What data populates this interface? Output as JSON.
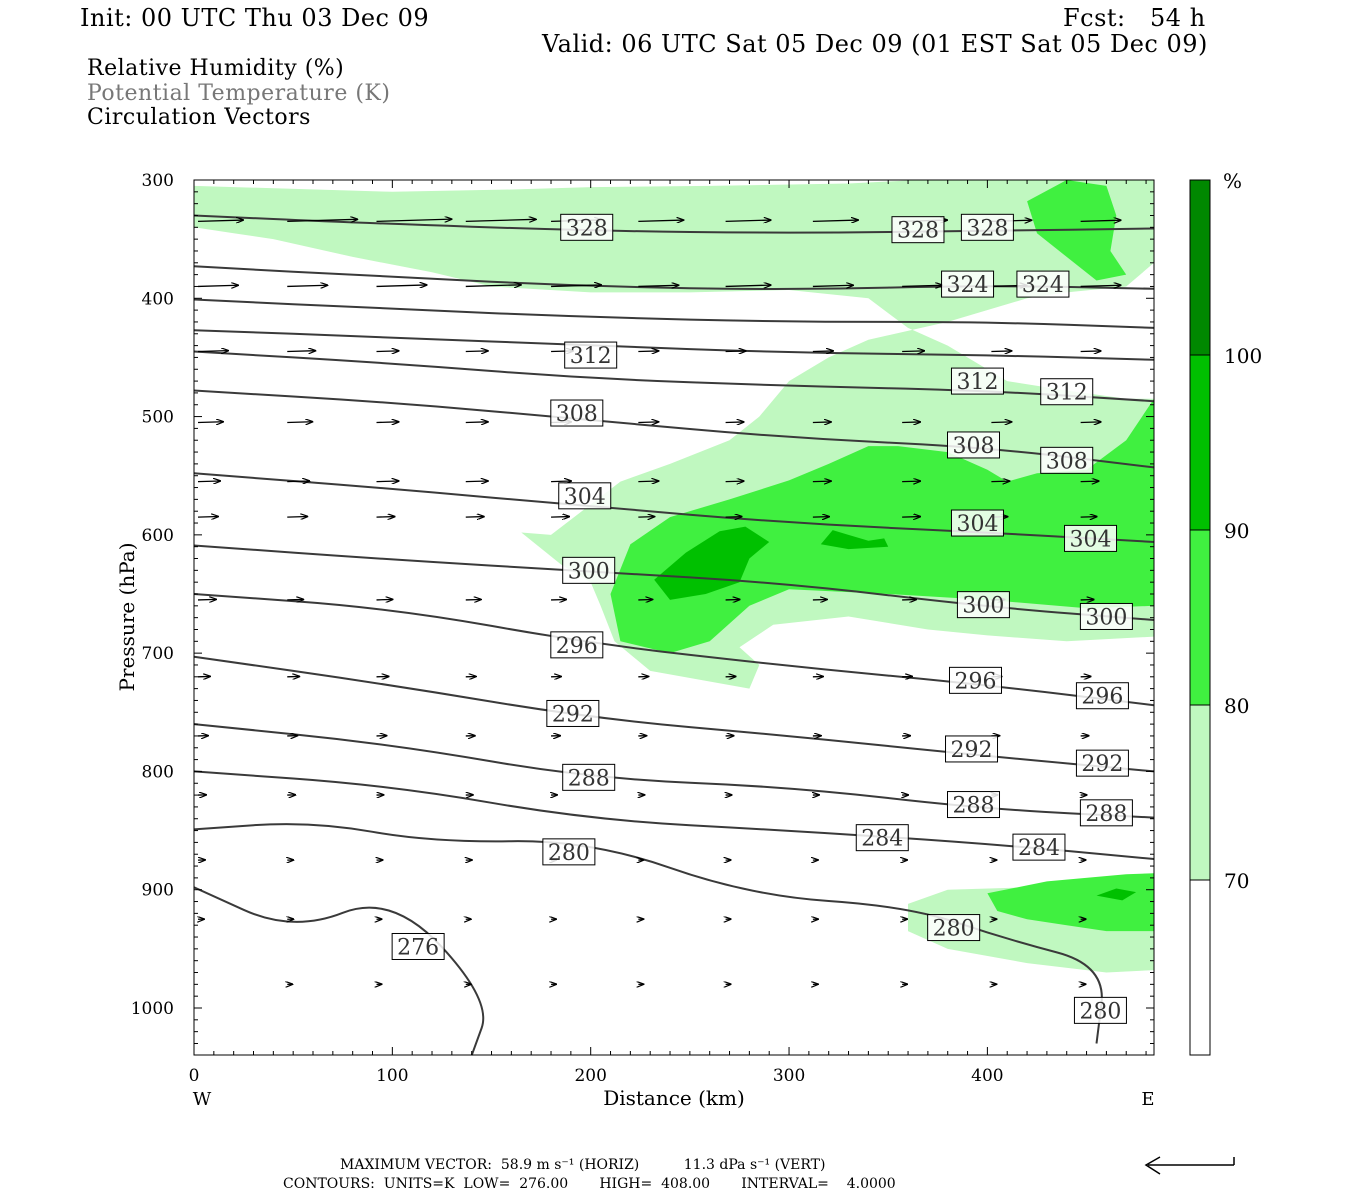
{
  "header": {
    "init": "Init: 00 UTC Thu 03 Dec 09",
    "fcst": "Fcst:   54 h",
    "valid": "Valid: 06 UTC Sat 05 Dec 09 (01 EST Sat 05 Dec 09)",
    "fields": [
      "Relative Humidity (%)",
      "Potential Temperature (K)",
      "Circulation Vectors"
    ]
  },
  "footer": {
    "max_vector": "MAXIMUM VECTOR:  58.9 m s⁻¹ (HORIZ)          11.3 dPa s⁻¹ (VERT)",
    "contours": "CONTOURS:  UNITS=K  LOW=  276.00       HIGH=  408.00       INTERVAL=    4.0000"
  },
  "colors": {
    "rh_70": "#c0f8c0",
    "rh_80": "#40f040",
    "rh_90": "#00c000",
    "rh_100": "#008800",
    "contour": "#3a3a3a",
    "legend_text_muted": "#777777"
  },
  "chart_data": {
    "type": "cross-section",
    "title": "",
    "xlabel": "Distance (km)",
    "ylabel": "Pressure (hPa)",
    "xlim": [
      0,
      484
    ],
    "ylim": [
      1040,
      300
    ],
    "x_ticks": [
      "0",
      "100",
      "200",
      "300",
      "400"
    ],
    "y_ticks": [
      "300",
      "400",
      "500",
      "600",
      "700",
      "800",
      "900",
      "1000"
    ],
    "x_left_label": "W",
    "x_right_label": "E",
    "colorbar": {
      "unit": "%",
      "ticks": [
        "70",
        "80",
        "90",
        "100"
      ],
      "levels": [
        70,
        80,
        90,
        100
      ]
    },
    "theta_contours": [
      {
        "value": 328,
        "label": "328",
        "points": [
          [
            0,
            330
          ],
          [
            80,
            336
          ],
          [
            200,
            343
          ],
          [
            300,
            345
          ],
          [
            400,
            343
          ],
          [
            484,
            341
          ]
        ],
        "labels_at": [
          [
            198,
            340
          ],
          [
            365,
            342
          ],
          [
            400,
            340
          ]
        ]
      },
      {
        "value": 324,
        "label": "324",
        "points": [
          [
            0,
            373
          ],
          [
            100,
            382
          ],
          [
            200,
            390
          ],
          [
            300,
            393
          ],
          [
            400,
            389
          ],
          [
            484,
            392
          ]
        ],
        "labels_at": [
          [
            390,
            388
          ],
          [
            428,
            388
          ]
        ]
      },
      {
        "value": 320,
        "label": "",
        "points": [
          [
            0,
            401
          ],
          [
            100,
            409
          ],
          [
            200,
            416
          ],
          [
            300,
            420
          ],
          [
            400,
            420
          ],
          [
            484,
            425
          ]
        ],
        "labels_at": []
      },
      {
        "value": 316,
        "label": "",
        "points": [
          [
            0,
            427
          ],
          [
            100,
            433
          ],
          [
            200,
            440
          ],
          [
            300,
            446
          ],
          [
            400,
            448
          ],
          [
            484,
            452
          ]
        ],
        "labels_at": []
      },
      {
        "value": 312,
        "label": "312",
        "points": [
          [
            0,
            445
          ],
          [
            100,
            455
          ],
          [
            200,
            468
          ],
          [
            300,
            474
          ],
          [
            400,
            478
          ],
          [
            484,
            487
          ]
        ],
        "labels_at": [
          [
            200,
            448
          ],
          [
            395,
            470
          ],
          [
            440,
            479
          ]
        ]
      },
      {
        "value": 308,
        "label": "308",
        "points": [
          [
            0,
            478
          ],
          [
            100,
            488
          ],
          [
            200,
            503
          ],
          [
            300,
            518
          ],
          [
            400,
            526
          ],
          [
            484,
            543
          ]
        ],
        "labels_at": [
          [
            193,
            497
          ],
          [
            393,
            524
          ],
          [
            440,
            537
          ]
        ]
      },
      {
        "value": 304,
        "label": "304",
        "points": [
          [
            0,
            548
          ],
          [
            100,
            561
          ],
          [
            200,
            576
          ],
          [
            300,
            590
          ],
          [
            400,
            598
          ],
          [
            484,
            606
          ]
        ],
        "labels_at": [
          [
            197,
            567
          ],
          [
            395,
            590
          ],
          [
            452,
            603
          ]
        ]
      },
      {
        "value": 300,
        "label": "300",
        "points": [
          [
            0,
            609
          ],
          [
            100,
            621
          ],
          [
            200,
            631
          ],
          [
            300,
            641
          ],
          [
            400,
            661
          ],
          [
            484,
            672
          ]
        ],
        "labels_at": [
          [
            199,
            630
          ],
          [
            398,
            659
          ],
          [
            460,
            669
          ]
        ]
      },
      {
        "value": 296,
        "label": "296",
        "points": [
          [
            0,
            650
          ],
          [
            100,
            662
          ],
          [
            200,
            692
          ],
          [
            300,
            711
          ],
          [
            400,
            727
          ],
          [
            484,
            744
          ]
        ],
        "labels_at": [
          [
            193,
            693
          ],
          [
            394,
            723
          ],
          [
            458,
            736
          ]
        ]
      },
      {
        "value": 292,
        "label": "292",
        "points": [
          [
            0,
            703
          ],
          [
            100,
            727
          ],
          [
            200,
            755
          ],
          [
            300,
            770
          ],
          [
            400,
            787
          ],
          [
            484,
            800
          ]
        ],
        "labels_at": [
          [
            191,
            751
          ],
          [
            392,
            781
          ],
          [
            458,
            793
          ]
        ]
      },
      {
        "value": 288,
        "label": "288",
        "points": [
          [
            0,
            760
          ],
          [
            100,
            777
          ],
          [
            200,
            806
          ],
          [
            300,
            813
          ],
          [
            400,
            832
          ],
          [
            484,
            839
          ]
        ],
        "labels_at": [
          [
            199,
            805
          ],
          [
            393,
            828
          ],
          [
            460,
            835
          ]
        ]
      },
      {
        "value": 284,
        "label": "284",
        "points": [
          [
            0,
            800
          ],
          [
            100,
            812
          ],
          [
            200,
            841
          ],
          [
            300,
            850
          ],
          [
            400,
            861
          ],
          [
            484,
            874
          ]
        ],
        "labels_at": [
          [
            347,
            856
          ],
          [
            426,
            864
          ]
        ]
      },
      {
        "value": 280,
        "label": "280",
        "points": [
          [
            0,
            849
          ],
          [
            60,
            842
          ],
          [
            120,
            860
          ],
          [
            200,
            858
          ],
          [
            280,
            905
          ],
          [
            360,
            914
          ],
          [
            410,
            942
          ],
          [
            460,
            964
          ],
          [
            455,
            1030
          ]
        ],
        "labels_at": [
          [
            189,
            868
          ],
          [
            383,
            932
          ],
          [
            457,
            1002
          ]
        ]
      },
      {
        "value": 276,
        "label": "276",
        "points": [
          [
            0,
            898
          ],
          [
            50,
            936
          ],
          [
            100,
            903
          ],
          [
            150,
            994
          ],
          [
            140,
            1040
          ]
        ],
        "labels_at": [
          [
            113,
            948
          ]
        ]
      }
    ],
    "vectors_note": "Circulation vectors plotted on a grid; predominantly westerly (left-to-right) flow, strongest near 330-400 hPa.",
    "rh_regions": [
      {
        "level": 70,
        "desc": "upper moist layer 300-400 hPa; mid-level tongue from 200 km eastward 450-720 hPa; low-level patch east of 360 km 890-970 hPa"
      },
      {
        "level": 80,
        "desc": "300-370 hPa near 420-460 km; 520-700 hPa from 210 km eastward; 890-940 hPa east of 400 km"
      },
      {
        "level": 90,
        "desc": "near 250-280 km and 600-650 hPa; near 320 km ~605 hPa; near 465 km ~905 hPa"
      }
    ]
  }
}
